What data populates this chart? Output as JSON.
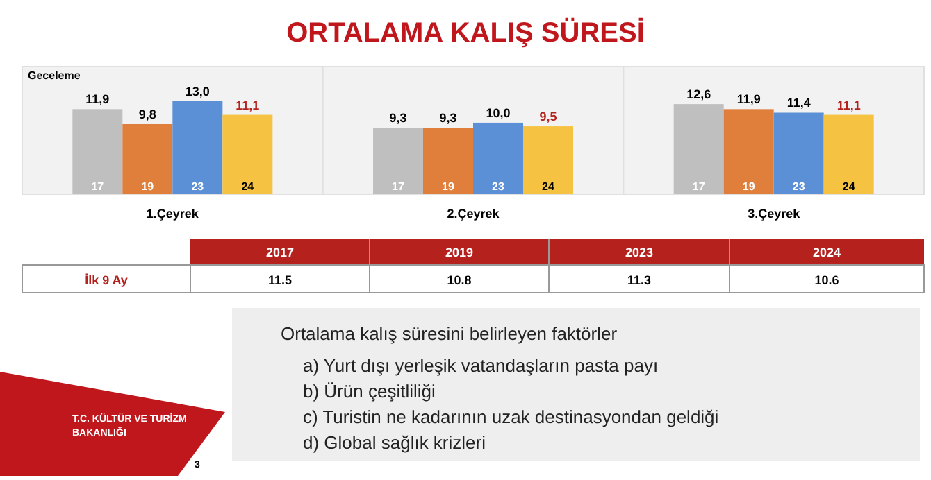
{
  "chart_data": {
    "type": "bar",
    "title": "ORTALAMA KALIŞ SÜRESİ",
    "ylabel": "Geceleme",
    "categories": [
      "1.Çeyrek",
      "2.Çeyrek",
      "3.Çeyrek"
    ],
    "series": [
      {
        "name": "17",
        "color": "#bfbfbf",
        "values": [
          11.9,
          9.3,
          12.6
        ],
        "value_labels": [
          "11,9",
          "9,3",
          "12,6"
        ]
      },
      {
        "name": "19",
        "color": "#e07f3c",
        "values": [
          9.8,
          9.3,
          11.9
        ],
        "value_labels": [
          "9,8",
          "9,3",
          "11,9"
        ]
      },
      {
        "name": "23",
        "color": "#5b8fd6",
        "values": [
          13.0,
          10.0,
          11.4
        ],
        "value_labels": [
          "13,0",
          "10,0",
          "11,4"
        ]
      },
      {
        "name": "24",
        "color": "#f5c242",
        "values": [
          11.1,
          9.5,
          11.1
        ],
        "value_labels": [
          "11,1",
          "9,5",
          "11,1"
        ]
      }
    ],
    "annotations": [
      "İlk 9 Ay",
      "2017",
      "2019",
      "2023",
      "2024",
      "11.5",
      "10.8",
      "11.3",
      "10.6",
      "Ortalama kalış süresini belirleyen faktörler",
      "a) Yurt dışı yerleşik vatandaşların pasta payı",
      "b) Ürün çeşitliliği",
      "c) Turistin ne kadarının uzak destinasyondan geldiği",
      "d) Global sağlık krizleri",
      "T.C. KÜLTÜR VE TURİZM BAKANLIĞI",
      "3"
    ]
  }
}
